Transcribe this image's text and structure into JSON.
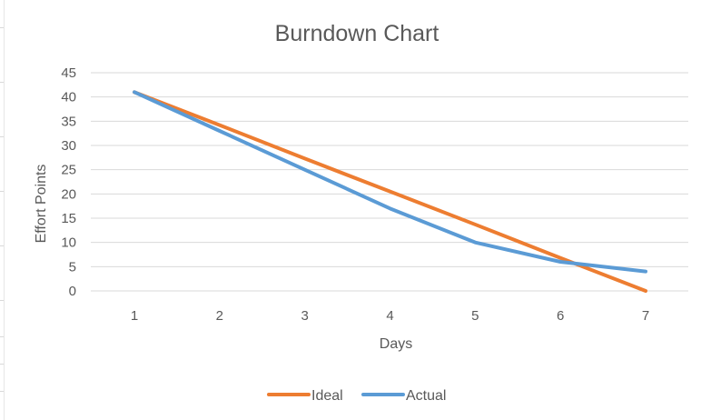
{
  "chart_data": {
    "type": "line",
    "title": "Burndown Chart",
    "xlabel": "Days",
    "ylabel": "Effort Points",
    "x": [
      1,
      2,
      3,
      4,
      5,
      6,
      7
    ],
    "ylim": [
      0,
      45
    ],
    "yticks": [
      0,
      5,
      10,
      15,
      20,
      25,
      30,
      35,
      40,
      45
    ],
    "grid": true,
    "legend_position": "bottom",
    "series": [
      {
        "name": "Ideal",
        "color": "#ED7D31",
        "values": [
          41,
          34.2,
          27.3,
          20.5,
          13.7,
          6.8,
          0
        ]
      },
      {
        "name": "Actual",
        "color": "#5B9BD5",
        "values": [
          41,
          33,
          25,
          17,
          10,
          6,
          4
        ]
      }
    ]
  }
}
